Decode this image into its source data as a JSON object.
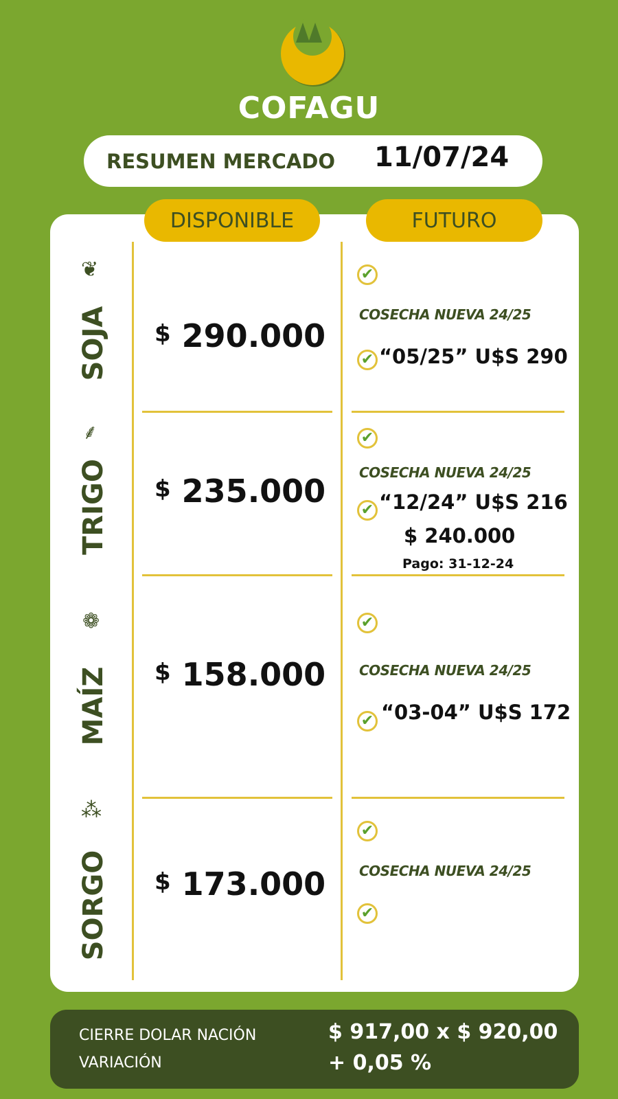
{
  "header": {
    "brand": "COFAGU",
    "title": "RESUMEN MERCADO",
    "date": "11/07/24"
  },
  "columns": {
    "disponible": "DISPONIBLE",
    "futuro": "FUTURO"
  },
  "rows": [
    {
      "crop": "SOJA",
      "icon": "soybean-icon",
      "price_symbol": "$",
      "price": "290.000",
      "cosecha": "COSECHA NUEVA 24/25",
      "futuro": "“05/25” U$S 290"
    },
    {
      "crop": "TRIGO",
      "icon": "wheat-icon",
      "price_symbol": "$",
      "price": "235.000",
      "cosecha": "COSECHA NUEVA 24/25",
      "futuro": "“12/24” U$S 216",
      "futuro_pesos": "$ 240.000",
      "pago": "Pago: 31-12-24"
    },
    {
      "crop": "MAÍZ",
      "icon": "corn-icon",
      "price_symbol": "$",
      "price": "158.000",
      "cosecha": "COSECHA NUEVA 24/25",
      "futuro": "“03-04” U$S 172"
    },
    {
      "crop": "SORGO",
      "icon": "sorghum-icon",
      "price_symbol": "$",
      "price": "173.000",
      "cosecha": "COSECHA NUEVA 24/25",
      "futuro": ""
    }
  ],
  "footer": {
    "label1": "CIERRE DOLAR NACIÓN",
    "label2": "VARIACIÓN",
    "value1": "$ 917,00 x $ 920,00",
    "value2": "+ 0,05 %"
  },
  "colors": {
    "background": "#7ba72f",
    "accent": "#e9b800",
    "dark": "#3d4f22",
    "check": "#5aa02c"
  }
}
